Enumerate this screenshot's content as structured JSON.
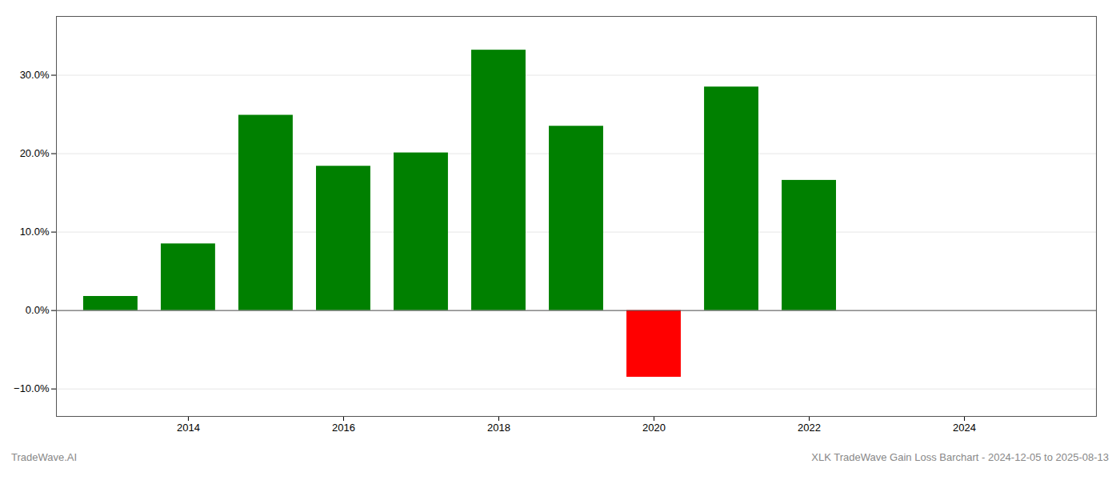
{
  "chart_data": {
    "type": "bar",
    "x": [
      2013,
      2014,
      2015,
      2016,
      2017,
      2018,
      2019,
      2020,
      2021,
      2022
    ],
    "values": [
      0.018,
      0.085,
      0.249,
      0.184,
      0.201,
      0.332,
      0.235,
      -0.085,
      0.285,
      0.166
    ],
    "colors": [
      "#008000",
      "#008000",
      "#008000",
      "#008000",
      "#008000",
      "#008000",
      "#008000",
      "#ff0000",
      "#008000",
      "#008000"
    ],
    "xlim": [
      2012.3,
      2025.7
    ],
    "xticks": [
      2014,
      2016,
      2018,
      2020,
      2022,
      2024
    ],
    "ylim": [
      -0.135,
      0.375
    ],
    "yticks": [
      {
        "value": -0.1,
        "label": "−10.0%"
      },
      {
        "value": 0,
        "label": "0.0%"
      },
      {
        "value": 0.1,
        "label": "10.0%"
      },
      {
        "value": 0.2,
        "label": "20.0%"
      },
      {
        "value": 0.3,
        "label": "30.0%"
      }
    ],
    "grid": "y",
    "annotations": [
      "TradeWave.AI",
      "XLK TradeWave Gain Loss Barchart - 2024-12-05 to 2025-08-13"
    ]
  }
}
